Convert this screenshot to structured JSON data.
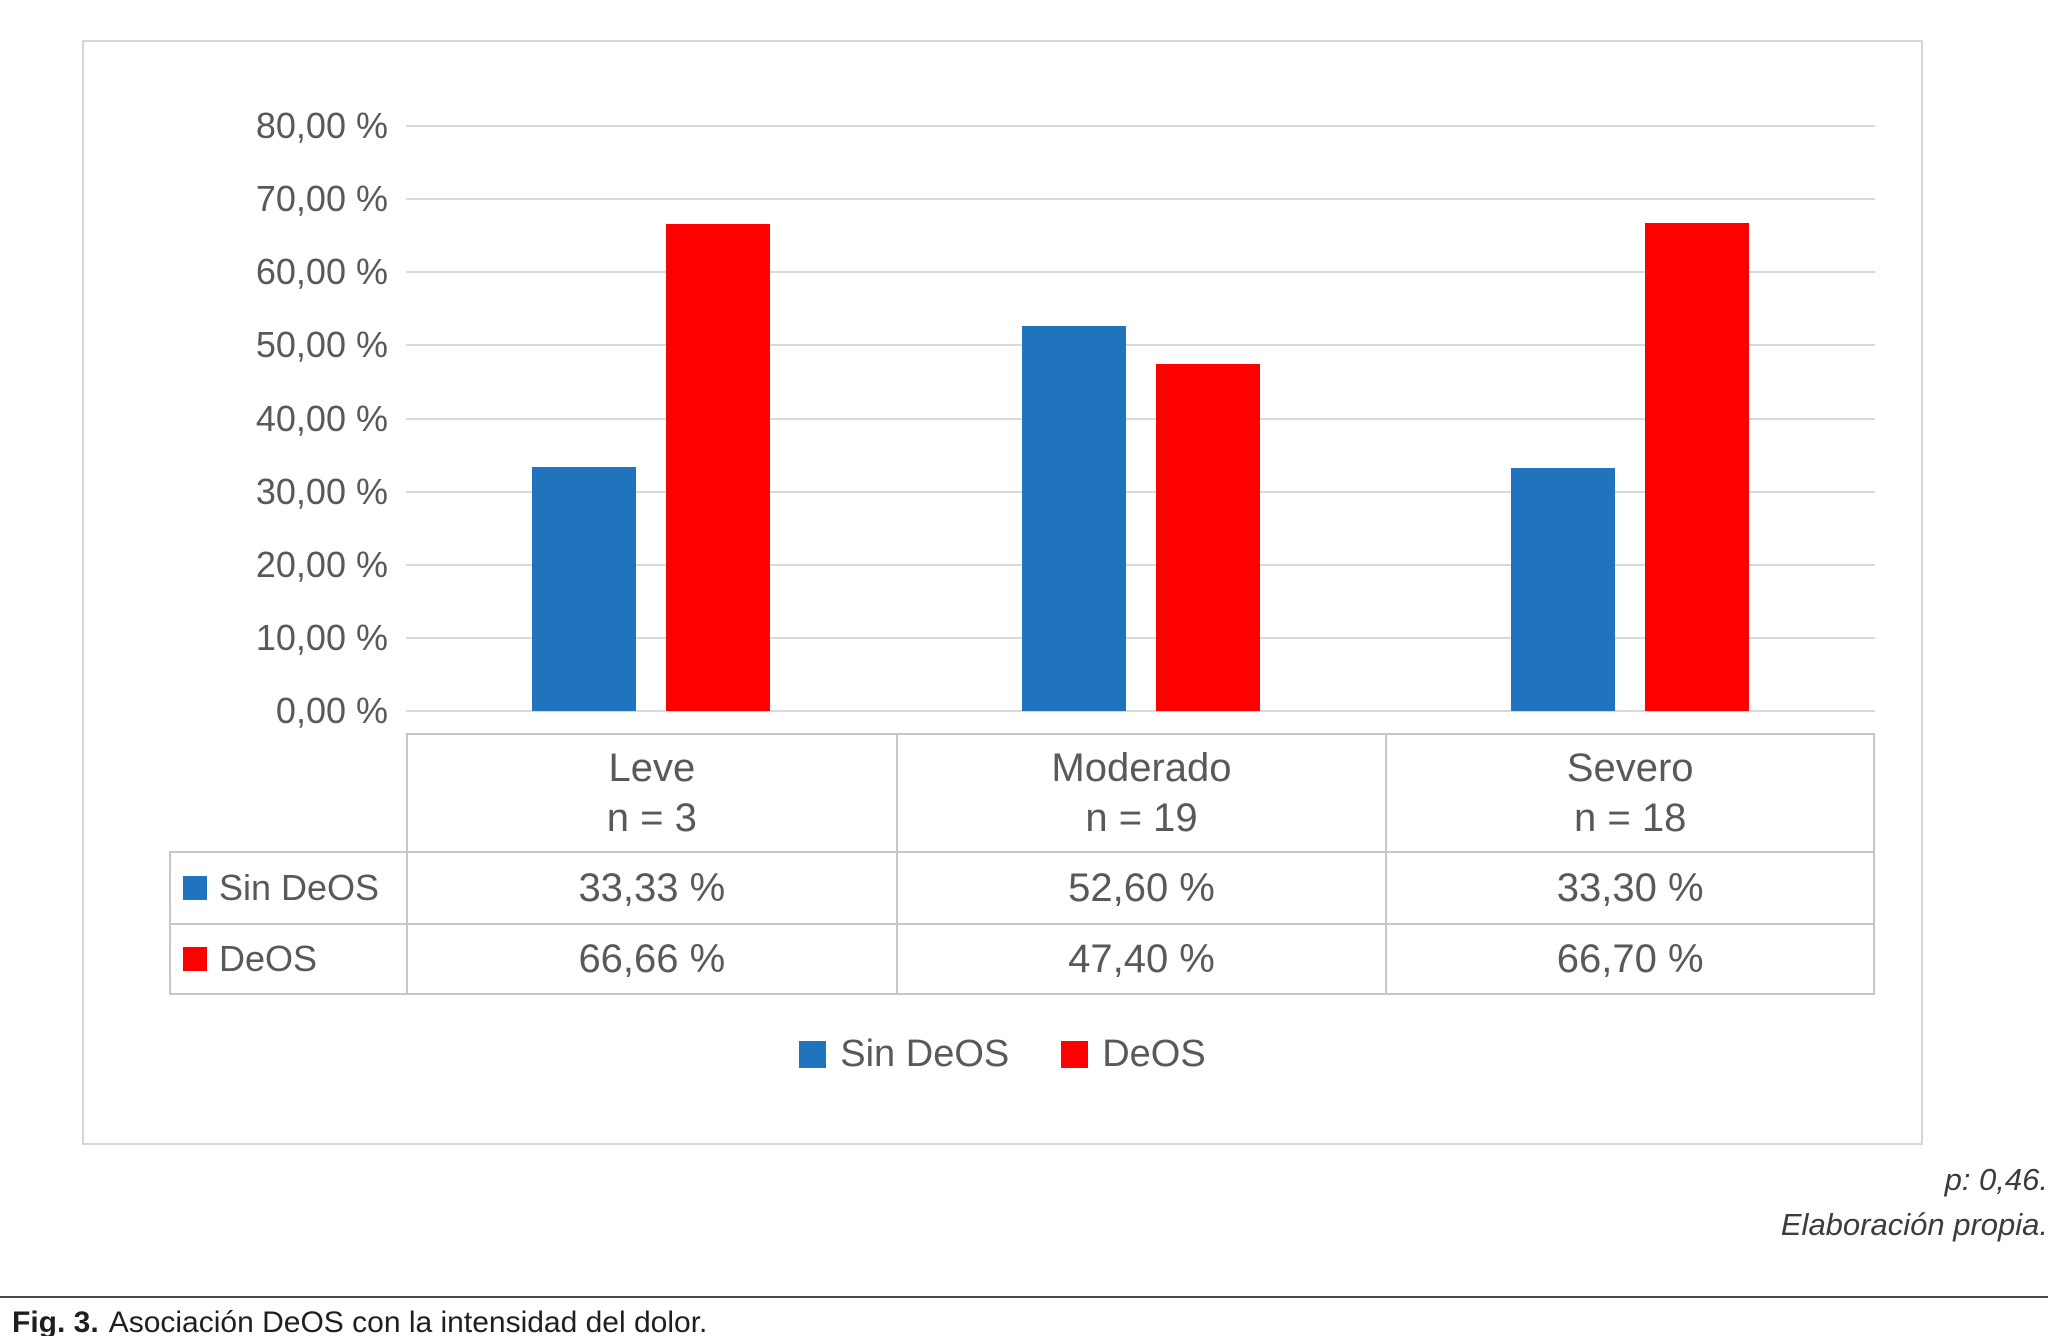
{
  "chart_data": {
    "type": "bar",
    "title": "",
    "categories": [
      "Leve",
      "Moderado",
      "Severo"
    ],
    "category_sublabels": [
      "n = 3",
      "n = 19",
      "n = 18"
    ],
    "series": [
      {
        "name": "Sin DeOS",
        "color": "#1F74BD",
        "values": [
          33.33,
          52.6,
          33.3
        ],
        "labels": [
          "33,33 %",
          "52,60 %",
          "33,30 %"
        ]
      },
      {
        "name": "DeOS",
        "color": "#FF0000",
        "values": [
          66.66,
          47.4,
          66.7
        ],
        "labels": [
          "66,66 %",
          "47,40 %",
          "66,70 %"
        ]
      }
    ],
    "ylim": [
      0,
      80
    ],
    "ytick_step": 10,
    "ytick_labels": [
      "80,00 %",
      "70,00 %",
      "60,00 %",
      "50,00 %",
      "40,00 %",
      "30,00 %",
      "20,00 %",
      "10,00 %",
      "0,00 %"
    ],
    "grid": true,
    "legend_position": "bottom",
    "gridline_color": "#d9d9d9",
    "text_color": "#595959"
  },
  "notes": {
    "p_value": "p: 0,46.",
    "source": "Elaboración propia."
  },
  "caption": {
    "label": "Fig. 3.",
    "text": "Asociación DeOS con la intensidad del dolor."
  }
}
